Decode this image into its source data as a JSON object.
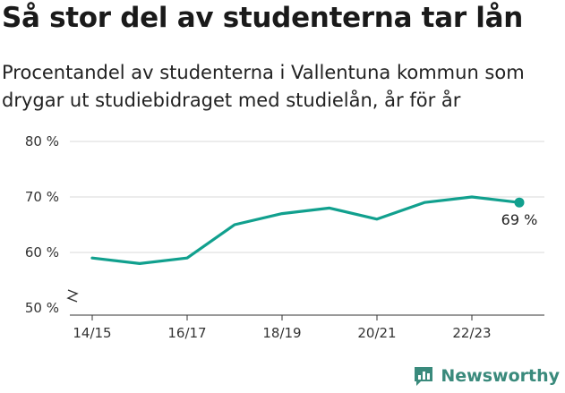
{
  "header": {
    "title": "Så stor del av studenterna tar lån",
    "subtitle": "Procentandel av studenterna i Vallentuna kommun som drygar ut studiebidraget med studielån, år för år"
  },
  "brand": {
    "name": "Newsworthy",
    "icon": "newsworthy-logo-icon",
    "color": "#3a8a7c"
  },
  "chart_data": {
    "type": "line",
    "title": "Så stor del av studenterna tar lån",
    "subtitle": "Procentandel av studenterna i Vallentuna kommun som drygar ut studiebidraget med studielån, år för år",
    "xlabel": "",
    "ylabel": "",
    "x": [
      "14/15",
      "15/16",
      "16/17",
      "17/18",
      "18/19",
      "19/20",
      "20/21",
      "21/22",
      "22/23",
      "23/24"
    ],
    "x_tick_labels": [
      "14/15",
      "16/17",
      "18/19",
      "20/21",
      "22/23"
    ],
    "series": [
      {
        "values": [
          59,
          58,
          59,
          65,
          67,
          68,
          66,
          69,
          70,
          69
        ],
        "color": "#11a08e"
      }
    ],
    "y_ticks": [
      50,
      60,
      70,
      80
    ],
    "y_tick_labels": [
      "50 %",
      "60 %",
      "70 %",
      "80 %"
    ],
    "ylim": [
      50,
      80
    ],
    "y_axis_break": true,
    "grid": true,
    "last_point_label": "69 %"
  }
}
